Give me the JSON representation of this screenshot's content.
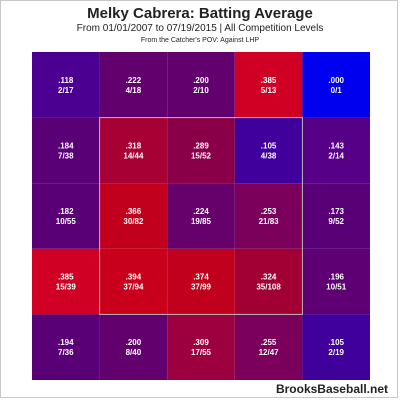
{
  "header": {
    "title": "Melky Cabrera: Batting Average",
    "subtitle": "From 01/01/2007 to 07/19/2015 | All Competition Levels",
    "pov": "From the Catcher's POV:  Against LHP"
  },
  "footer": {
    "watermark": "BrooksBaseball.net"
  },
  "chart_data": {
    "type": "heatmap",
    "title": "Melky Cabrera: Batting Average",
    "subtitle": "From 01/01/2007 to 07/19/2015 | All Competition Levels",
    "rows": 5,
    "cols": 5,
    "color_scale": {
      "low": "#0000ff",
      "mid": "#770077",
      "high": "#dd0000",
      "min": 0.0,
      "max": 0.4
    },
    "strike_zone": {
      "rows": [
        1,
        3
      ],
      "cols": [
        1,
        3
      ]
    },
    "cells": [
      [
        {
          "avg": ".118",
          "ratio": "2/17",
          "color": "#4b0092"
        },
        {
          "avg": ".222",
          "ratio": "4/18",
          "color": "#62006e"
        },
        {
          "avg": ".200",
          "ratio": "2/10",
          "color": "#62006e"
        },
        {
          "avg": ".385",
          "ratio": "5/13",
          "color": "#d00024"
        },
        {
          "avg": ".000",
          "ratio": "0/1",
          "color": "#0000ee"
        }
      ],
      [
        {
          "avg": ".184",
          "ratio": "7/38",
          "color": "#5a0076"
        },
        {
          "avg": ".318",
          "ratio": "14/44",
          "color": "#a60034"
        },
        {
          "avg": ".289",
          "ratio": "15/52",
          "color": "#8a0048"
        },
        {
          "avg": ".105",
          "ratio": "4/38",
          "color": "#3f009c"
        },
        {
          "avg": ".143",
          "ratio": "2/14",
          "color": "#560088"
        }
      ],
      [
        {
          "avg": ".182",
          "ratio": "10/55",
          "color": "#5a0076"
        },
        {
          "avg": ".366",
          "ratio": "30/82",
          "color": "#c0001c"
        },
        {
          "avg": ".224",
          "ratio": "19/85",
          "color": "#66006a"
        },
        {
          "avg": ".253",
          "ratio": "21/83",
          "color": "#7a005c"
        },
        {
          "avg": ".173",
          "ratio": "9/52",
          "color": "#5a0076"
        }
      ],
      [
        {
          "avg": ".385",
          "ratio": "15/39",
          "color": "#d00024"
        },
        {
          "avg": ".394",
          "ratio": "37/94",
          "color": "#c8001c"
        },
        {
          "avg": ".374",
          "ratio": "37/99",
          "color": "#c0001c"
        },
        {
          "avg": ".324",
          "ratio": "35/108",
          "color": "#a20034"
        },
        {
          "avg": ".196",
          "ratio": "10/51",
          "color": "#5e0074"
        }
      ],
      [
        {
          "avg": ".194",
          "ratio": "7/36",
          "color": "#5a0076"
        },
        {
          "avg": ".200",
          "ratio": "8/40",
          "color": "#62006e"
        },
        {
          "avg": ".309",
          "ratio": "17/55",
          "color": "#9c003e"
        },
        {
          "avg": ".255",
          "ratio": "12/47",
          "color": "#7a005c"
        },
        {
          "avg": ".105",
          "ratio": "2/19",
          "color": "#3f009c"
        }
      ]
    ]
  }
}
